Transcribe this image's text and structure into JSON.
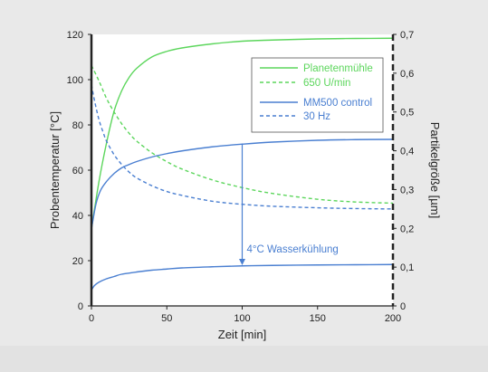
{
  "chart_data": {
    "type": "line",
    "xlabel": "Zeit [min]",
    "ylabel_left": "Probentemperatur [°C]",
    "ylabel_right": "Partikelgröße [µm]",
    "xlim": [
      0,
      200
    ],
    "ylim_left": [
      0,
      120
    ],
    "ylim_right": [
      0,
      0.7
    ],
    "x_ticks": [
      "0",
      "50",
      "100",
      "150",
      "200"
    ],
    "y_left_ticks": [
      "0",
      "20",
      "40",
      "60",
      "80",
      "100",
      "120"
    ],
    "y_right_ticks": [
      "0",
      "0,1",
      "0,2",
      "0,3",
      "0,4",
      "0,5",
      "0,6",
      "0,7"
    ],
    "grid": false,
    "legend_position": "top-right",
    "legend": [
      {
        "text": "Planetenmühle",
        "color": "#5cd65c",
        "style": "solid"
      },
      {
        "text": "650 U/min",
        "color": "#5cd65c",
        "style": "dashed"
      },
      {
        "text": "MM500 control",
        "color": "#4a7fd1",
        "style": "solid"
      },
      {
        "text": "30 Hz",
        "color": "#4a7fd1",
        "style": "dashed"
      }
    ],
    "series": [
      {
        "color": "#5cd65c",
        "style": "solid",
        "axis": "left",
        "x": [
          0,
          5,
          10,
          15,
          20,
          25,
          30,
          40,
          50,
          60,
          80,
          100,
          120,
          150,
          175,
          200
        ],
        "y": [
          34,
          55,
          72,
          86,
          95,
          101,
          105,
          110,
          112.5,
          114,
          115.8,
          117,
          117.5,
          118,
          118.2,
          118.3
        ]
      },
      {
        "color": "#5cd65c",
        "style": "dashed",
        "axis": "right",
        "x": [
          0,
          5,
          10,
          15,
          20,
          25,
          30,
          40,
          50,
          60,
          80,
          100,
          120,
          150,
          175,
          200
        ],
        "y": [
          0.62,
          0.58,
          0.535,
          0.5,
          0.47,
          0.445,
          0.425,
          0.395,
          0.372,
          0.353,
          0.325,
          0.305,
          0.29,
          0.275,
          0.268,
          0.265
        ]
      },
      {
        "color": "#4a7fd1",
        "style": "solid",
        "axis": "left",
        "x": [
          0,
          3,
          6,
          10,
          15,
          20,
          25,
          30,
          40,
          50,
          60,
          80,
          100,
          120,
          150,
          175,
          200
        ],
        "y": [
          34,
          45,
          51,
          55,
          58.5,
          61,
          62.5,
          63.8,
          65.8,
          67.3,
          68.5,
          70.3,
          71.5,
          72.4,
          73.2,
          73.5,
          73.6
        ]
      },
      {
        "color": "#4a7fd1",
        "style": "dashed",
        "axis": "right",
        "x": [
          0,
          2,
          5,
          8,
          10,
          15,
          20,
          25,
          30,
          40,
          50,
          60,
          80,
          100,
          120,
          150,
          175,
          200
        ],
        "y": [
          0.57,
          0.53,
          0.48,
          0.445,
          0.425,
          0.39,
          0.365,
          0.345,
          0.33,
          0.31,
          0.295,
          0.285,
          0.27,
          0.262,
          0.257,
          0.253,
          0.251,
          0.25
        ]
      },
      {
        "color": "#4a7fd1",
        "style": "solid",
        "axis": "left",
        "x": [
          0,
          2,
          5,
          10,
          15,
          20,
          30,
          40,
          50,
          60,
          80,
          100,
          120,
          150,
          175,
          200
        ],
        "y": [
          7,
          9,
          10.5,
          12,
          13,
          14,
          15,
          15.8,
          16.3,
          16.8,
          17.3,
          17.7,
          17.9,
          18.1,
          18.2,
          18.3
        ]
      }
    ],
    "annotations": [
      {
        "text": "4°C Wasserkühlung",
        "color": "#4a7fd1",
        "arrow_x": 100,
        "arrow_from_y": 71.5,
        "arrow_to_y": 18
      }
    ]
  }
}
